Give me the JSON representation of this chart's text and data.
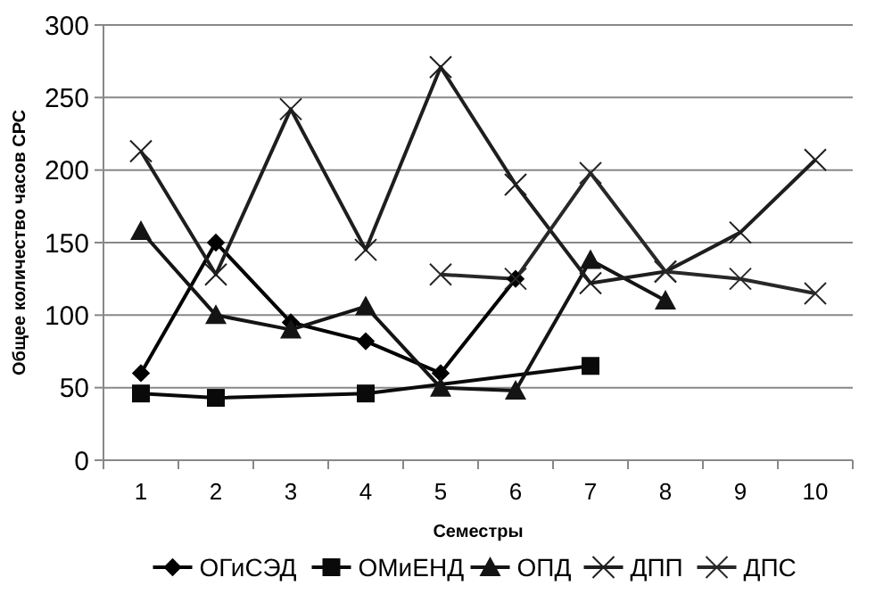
{
  "chart_data": {
    "type": "line",
    "xlabel": "Семестры",
    "ylabel": "Общее количество часов СРС",
    "categories": [
      "1",
      "2",
      "3",
      "4",
      "5",
      "6",
      "7",
      "8",
      "9",
      "10"
    ],
    "ylim": [
      0,
      300
    ],
    "yticks": [
      0,
      50,
      100,
      150,
      200,
      250,
      300
    ],
    "grid": "y",
    "legend": "bottom",
    "series": [
      {
        "name": "ОГиСЭД",
        "color": "#000000",
        "marker": "diamond",
        "values": [
          60,
          150,
          95,
          82,
          60,
          125,
          null,
          null,
          null,
          null
        ]
      },
      {
        "name": "ОМиЕНД",
        "color": "#0a0a0a",
        "marker": "square",
        "values": [
          46,
          43,
          null,
          46,
          null,
          null,
          65,
          null,
          null,
          null
        ]
      },
      {
        "name": "ОПД",
        "color": "#141414",
        "marker": "triangle",
        "values": [
          158,
          100,
          90,
          106,
          50,
          48,
          138,
          110,
          null,
          null
        ]
      },
      {
        "name": "ДПП",
        "color": "#1e1e1e",
        "marker": "cross",
        "values": [
          213,
          128,
          242,
          145,
          271,
          190,
          122,
          130,
          157,
          207
        ]
      },
      {
        "name": "ДПС",
        "color": "#282828",
        "marker": "cross",
        "values": [
          null,
          null,
          null,
          null,
          128,
          125,
          198,
          130,
          125,
          115
        ]
      }
    ]
  }
}
